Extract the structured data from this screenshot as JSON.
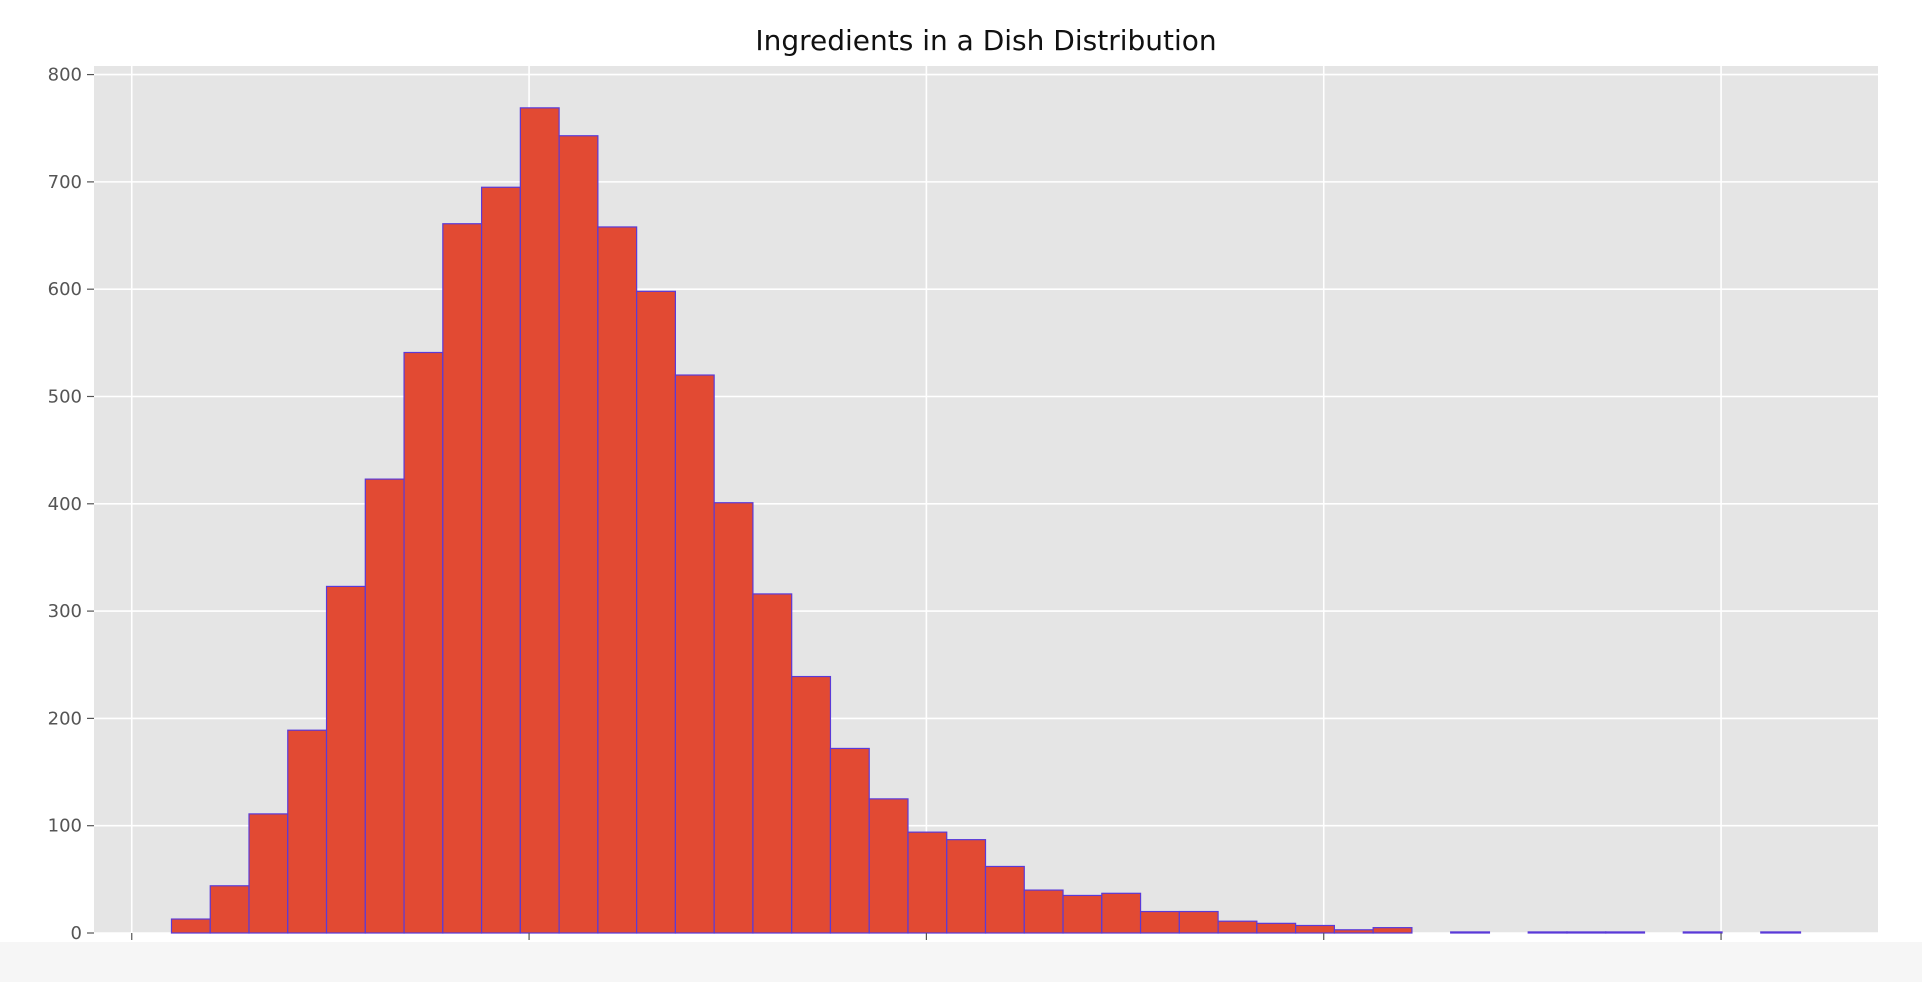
{
  "chart_data": {
    "type": "bar",
    "title": "Ingredients in a Dish Distribution",
    "xlabel": "",
    "ylabel": "",
    "bin_edges": [
      1.0,
      1.9756,
      2.9512,
      3.9268,
      4.9024,
      5.878,
      6.8537,
      7.8293,
      8.8049,
      9.7805,
      10.7561,
      11.7317,
      12.7073,
      13.6829,
      14.6585,
      15.6341,
      16.6098,
      17.5854,
      18.561,
      19.5366,
      20.5122,
      21.4878,
      22.4634,
      23.439,
      24.4146,
      25.3902,
      26.3659,
      27.3415,
      28.3171,
      29.2927,
      30.2683,
      31.2439,
      32.2195,
      33.1951,
      34.1707,
      35.1463,
      36.122,
      37.0976,
      38.0732,
      39.0488,
      40.0244,
      41.0,
      42.0
    ],
    "values": [
      13,
      44,
      111,
      189,
      323,
      423,
      541,
      661,
      695,
      769,
      743,
      658,
      598,
      520,
      401,
      316,
      239,
      172,
      125,
      94,
      87,
      62,
      40,
      35,
      37,
      20,
      20,
      11,
      9,
      7,
      3,
      5,
      0,
      1,
      0,
      1,
      1,
      1,
      0,
      1,
      0,
      1
    ],
    "xlim": [
      -0.95,
      43.95
    ],
    "ylim": [
      0,
      808
    ],
    "xticks": [
      0,
      10,
      20,
      30,
      40
    ],
    "yticks": [
      0,
      100,
      200,
      300,
      400,
      500,
      600,
      700,
      800
    ],
    "grid": true,
    "legend": "none",
    "colors": {
      "bar_fill": "#E24A33",
      "bar_edge": "#5a3ad8",
      "axes_background": "#E5E5E5",
      "grid": "#ffffff",
      "tick": "#555555"
    }
  }
}
